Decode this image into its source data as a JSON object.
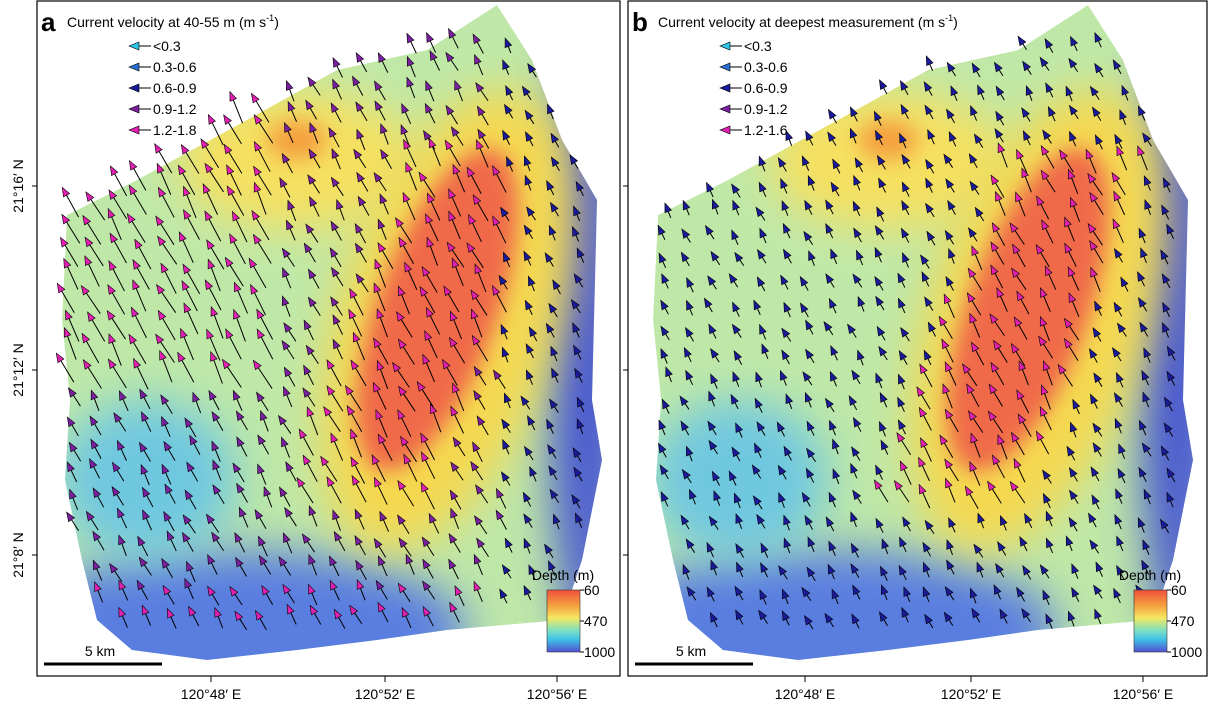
{
  "panels": [
    {
      "label": "a",
      "title": "Current velocity at 40-55 m (m s",
      "title_exp": "-1",
      "title_close": ")",
      "legend": [
        "<0.3",
        "0.3-0.6",
        "0.6-0.9",
        "0.9-1.2",
        "1.2-1.8"
      ],
      "depth_title": "Depth (m)",
      "depth_labels": [
        "60",
        "470",
        "1000"
      ],
      "scale": "5 km",
      "x_ticks": [
        "120°48′ E",
        "120°52′ E",
        "120°56′ E"
      ]
    },
    {
      "label": "b",
      "title": "Current velocity at deepest measurement (m s",
      "title_exp": "-1",
      "title_close": ")",
      "legend": [
        "<0.3",
        "0.3-0.6",
        "0.6-0.9",
        "0.9-1.2",
        "1.2-1.6"
      ],
      "depth_title": "Depth (m)",
      "depth_labels": [
        "60",
        "470",
        "1000"
      ],
      "scale": "5 km",
      "x_ticks": [
        "120°48′ E",
        "120°52′ E",
        "120°56′ E"
      ]
    }
  ],
  "y_ticks": [
    "21°16′ N",
    "21°12′ N",
    "21°8′ N"
  ]
}
